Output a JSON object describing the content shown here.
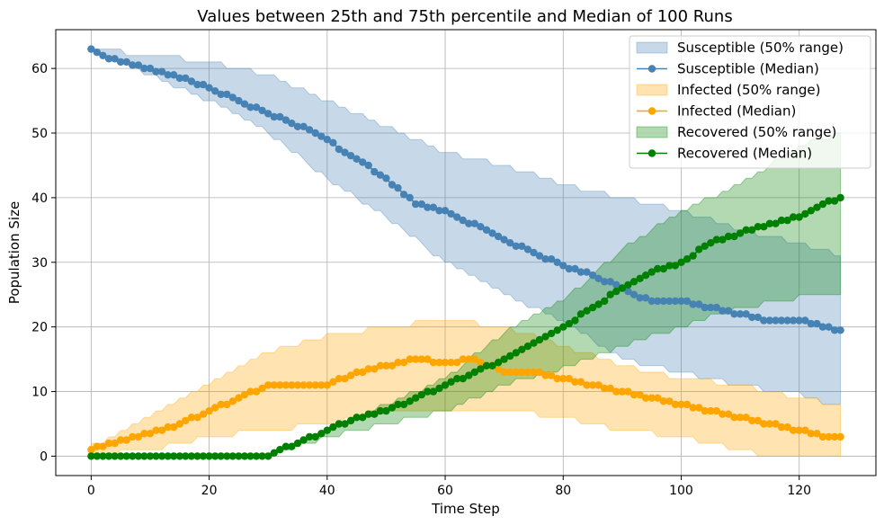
{
  "chart_data": {
    "type": "line",
    "title": "Values between 25th and 75th percentile and Median of 100 Runs",
    "xlabel": "Time Step",
    "ylabel": "Population Size",
    "xlim": [
      -6,
      133
    ],
    "ylim": [
      -3,
      66
    ],
    "xticks": [
      0,
      20,
      40,
      60,
      80,
      100,
      120
    ],
    "yticks": [
      0,
      10,
      20,
      30,
      40,
      50,
      60
    ],
    "grid": true,
    "legend_position": "top-right",
    "x_range": [
      0,
      127
    ],
    "series": [
      {
        "name": "Susceptible",
        "color": "#4682b4",
        "band_label": "Susceptible (50% range)",
        "median_label": "Susceptible (Median)",
        "median_knots": [
          [
            0,
            63
          ],
          [
            2,
            62
          ],
          [
            5,
            61
          ],
          [
            9,
            60
          ],
          [
            12,
            59.5
          ],
          [
            20,
            57
          ],
          [
            30,
            53
          ],
          [
            38,
            50
          ],
          [
            45,
            46
          ],
          [
            50,
            43
          ],
          [
            55,
            39
          ],
          [
            60,
            38
          ],
          [
            70,
            33.5
          ],
          [
            80,
            29.5
          ],
          [
            85,
            28
          ],
          [
            90,
            26
          ],
          [
            93,
            24.5
          ],
          [
            95,
            24
          ],
          [
            100,
            24
          ],
          [
            105,
            23
          ],
          [
            110,
            22
          ],
          [
            115,
            21
          ],
          [
            120,
            21
          ],
          [
            124,
            20
          ],
          [
            127,
            19.5
          ]
        ],
        "lower_knots": [
          [
            0,
            63
          ],
          [
            10,
            59
          ],
          [
            20,
            55
          ],
          [
            30,
            50
          ],
          [
            40,
            43
          ],
          [
            50,
            37
          ],
          [
            60,
            30
          ],
          [
            70,
            25
          ],
          [
            80,
            21
          ],
          [
            90,
            15
          ],
          [
            100,
            13
          ],
          [
            110,
            11
          ],
          [
            120,
            9.5
          ],
          [
            127,
            7.5
          ]
        ],
        "upper_knots": [
          [
            0,
            63
          ],
          [
            10,
            62
          ],
          [
            20,
            61
          ],
          [
            30,
            59
          ],
          [
            40,
            55
          ],
          [
            50,
            51
          ],
          [
            60,
            47
          ],
          [
            70,
            45
          ],
          [
            80,
            42
          ],
          [
            90,
            40
          ],
          [
            100,
            38
          ],
          [
            110,
            35
          ],
          [
            120,
            33
          ],
          [
            127,
            31
          ]
        ]
      },
      {
        "name": "Infected",
        "color": "#ffa500",
        "band_label": "Infected (50% range)",
        "median_label": "Infected (Median)",
        "median_knots": [
          [
            0,
            1
          ],
          [
            3,
            2
          ],
          [
            8,
            3
          ],
          [
            15,
            5
          ],
          [
            20,
            7
          ],
          [
            25,
            9
          ],
          [
            30,
            11
          ],
          [
            40,
            11
          ],
          [
            45,
            13
          ],
          [
            50,
            14
          ],
          [
            55,
            15
          ],
          [
            60,
            14.5
          ],
          [
            65,
            15
          ],
          [
            70,
            13
          ],
          [
            75,
            13
          ],
          [
            80,
            12
          ],
          [
            85,
            11
          ],
          [
            90,
            10
          ],
          [
            95,
            9
          ],
          [
            100,
            8
          ],
          [
            105,
            7
          ],
          [
            110,
            6
          ],
          [
            115,
            5
          ],
          [
            120,
            4
          ],
          [
            124,
            3
          ],
          [
            127,
            3
          ]
        ],
        "lower_knots": [
          [
            0,
            0
          ],
          [
            10,
            1
          ],
          [
            20,
            3
          ],
          [
            30,
            4
          ],
          [
            40,
            5
          ],
          [
            50,
            7
          ],
          [
            60,
            7
          ],
          [
            70,
            7
          ],
          [
            80,
            6
          ],
          [
            90,
            4
          ],
          [
            100,
            3
          ],
          [
            110,
            1
          ],
          [
            115,
            0
          ],
          [
            127,
            0
          ]
        ],
        "upper_knots": [
          [
            0,
            1.5
          ],
          [
            10,
            6
          ],
          [
            20,
            11
          ],
          [
            30,
            16
          ],
          [
            40,
            18.5
          ],
          [
            50,
            20
          ],
          [
            60,
            21
          ],
          [
            70,
            20
          ],
          [
            80,
            17
          ],
          [
            90,
            14
          ],
          [
            100,
            12
          ],
          [
            110,
            11
          ],
          [
            120,
            9
          ],
          [
            127,
            8
          ]
        ]
      },
      {
        "name": "Recovered",
        "color": "#008000",
        "band_label": "Recovered (50% range)",
        "median_knots": [
          [
            0,
            0
          ],
          [
            30,
            0
          ],
          [
            32,
            1
          ],
          [
            35,
            2
          ],
          [
            40,
            4
          ],
          [
            45,
            6
          ],
          [
            50,
            7
          ],
          [
            55,
            9
          ],
          [
            60,
            11
          ],
          [
            65,
            13
          ],
          [
            70,
            15
          ],
          [
            75,
            17.5
          ],
          [
            80,
            20
          ],
          [
            85,
            23
          ],
          [
            90,
            26
          ],
          [
            95,
            28.5
          ],
          [
            100,
            30
          ],
          [
            105,
            33
          ],
          [
            110,
            34.5
          ],
          [
            115,
            36
          ],
          [
            120,
            37
          ],
          [
            124,
            39
          ],
          [
            127,
            40
          ]
        ],
        "median_label": "Recovered (Median)",
        "lower_knots": [
          [
            0,
            0
          ],
          [
            30,
            0
          ],
          [
            40,
            3
          ],
          [
            50,
            5
          ],
          [
            60,
            7
          ],
          [
            70,
            11
          ],
          [
            80,
            13.5
          ],
          [
            90,
            17
          ],
          [
            100,
            20
          ],
          [
            110,
            23
          ],
          [
            120,
            24.5
          ],
          [
            127,
            25
          ]
        ],
        "upper_knots": [
          [
            0,
            0
          ],
          [
            30,
            0
          ],
          [
            40,
            4
          ],
          [
            50,
            8
          ],
          [
            60,
            12
          ],
          [
            70,
            19
          ],
          [
            80,
            24
          ],
          [
            90,
            32
          ],
          [
            100,
            38
          ],
          [
            110,
            42
          ],
          [
            120,
            48
          ],
          [
            127,
            50
          ]
        ]
      }
    ]
  }
}
